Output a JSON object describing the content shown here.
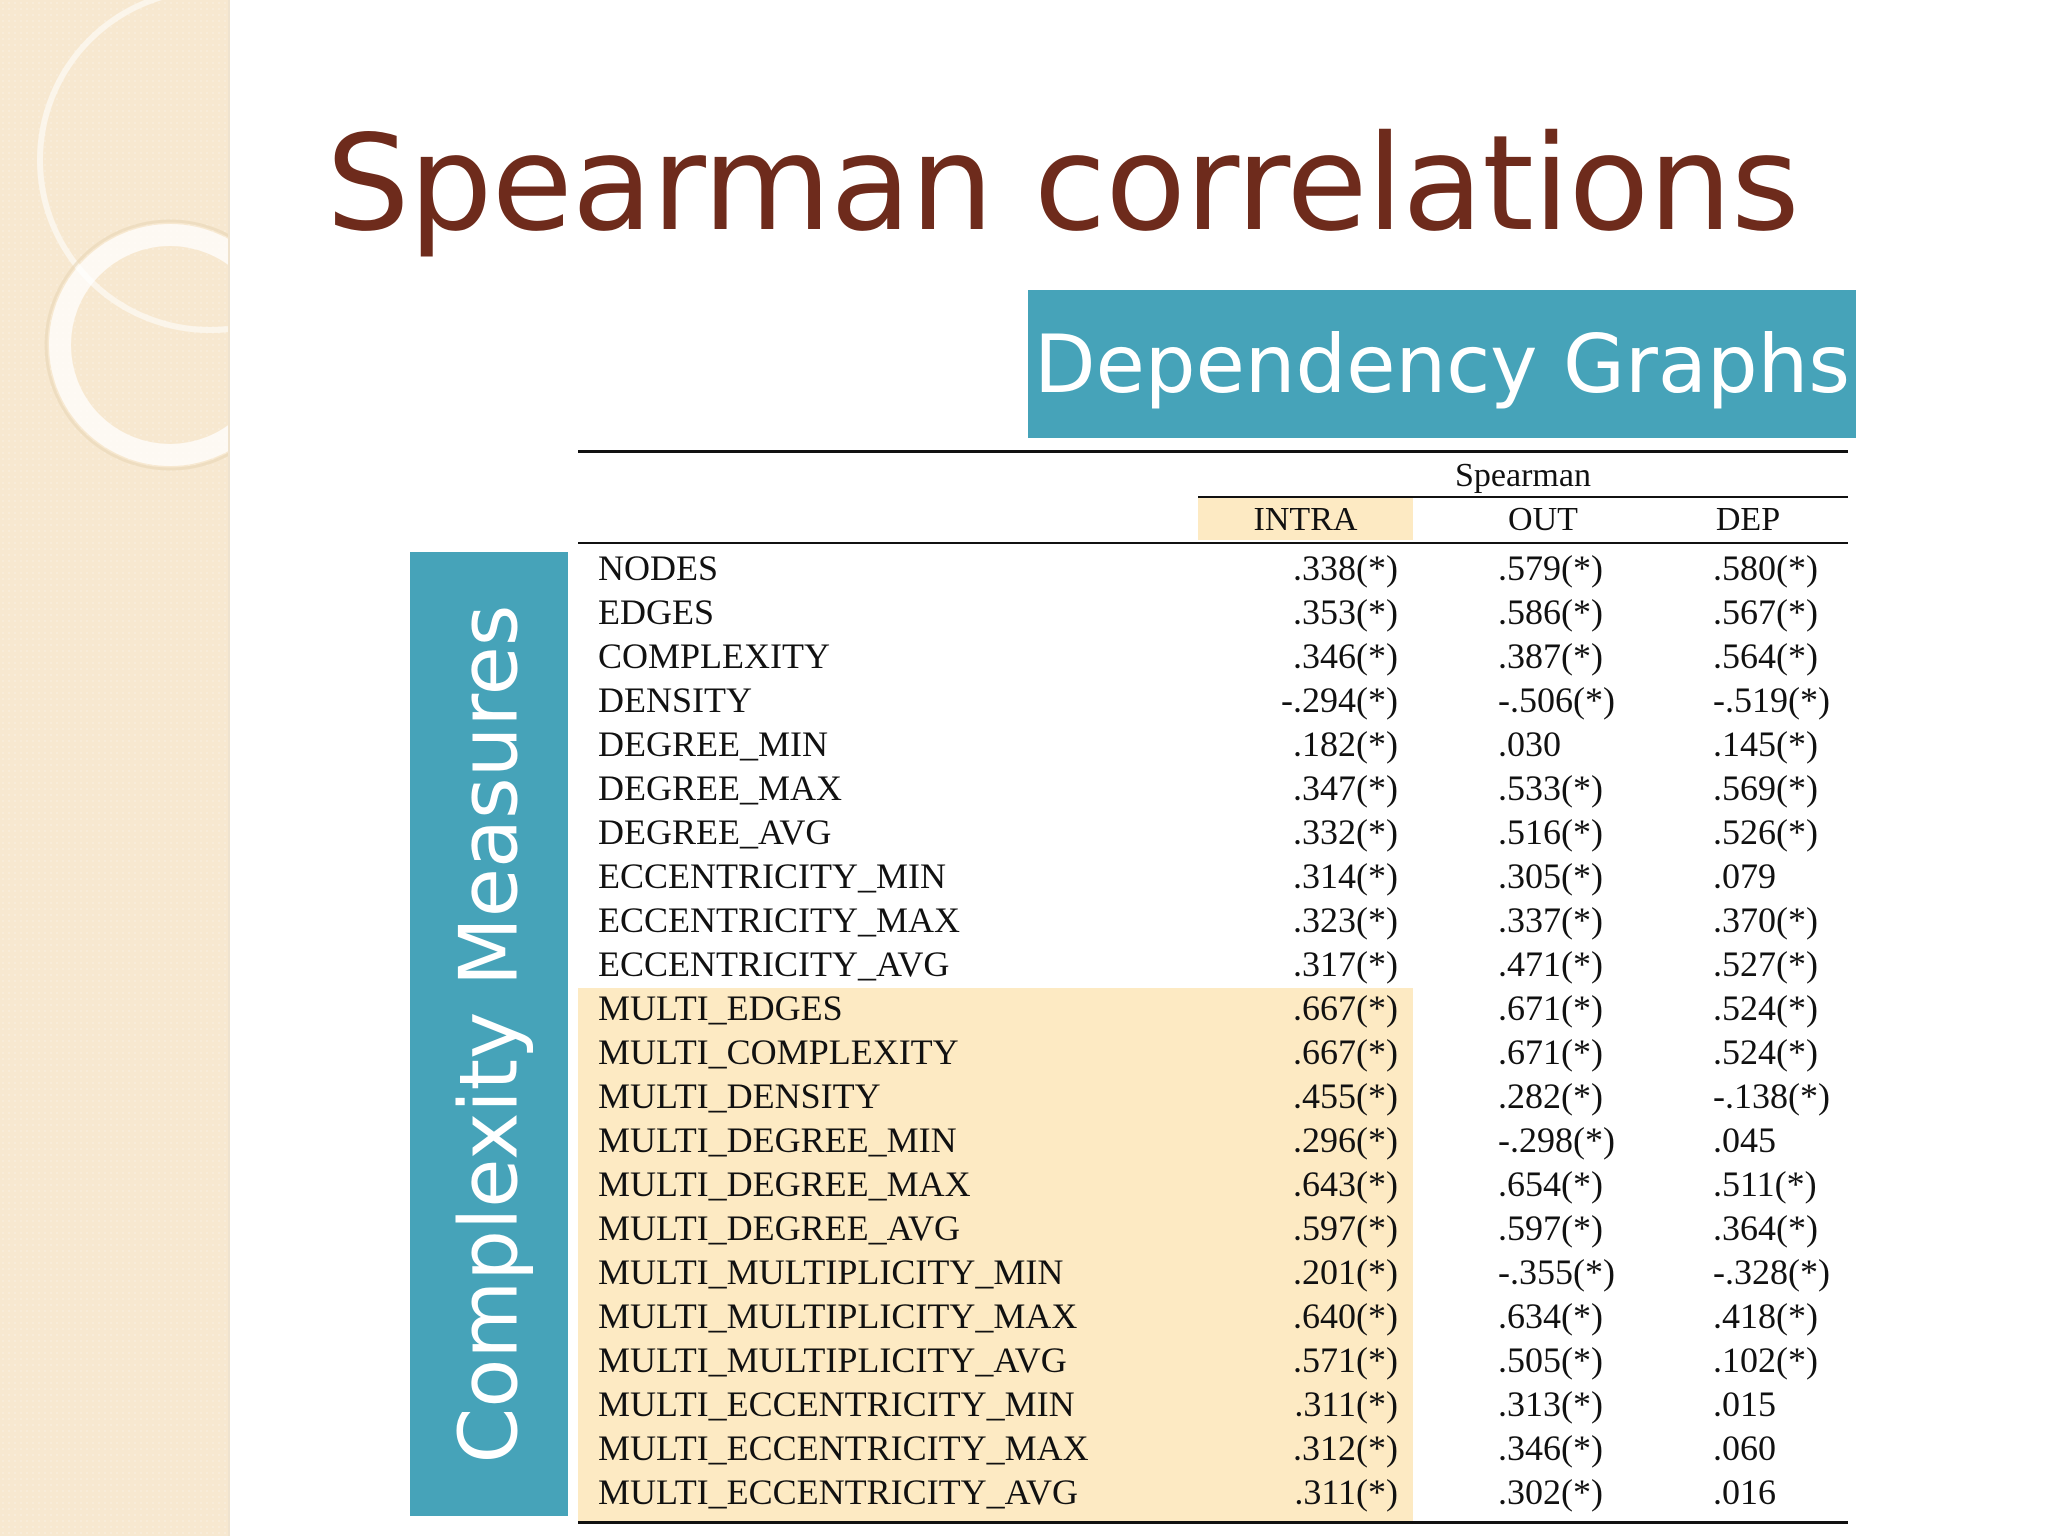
{
  "slide": {
    "title": "Spearman correlations",
    "header_box": "Dependency Graphs",
    "side_box": "Complexity Measures"
  },
  "table": {
    "group_header": "Spearman",
    "columns": [
      "INTRA",
      "OUT",
      "DEP"
    ],
    "rows": [
      {
        "name": "NODES",
        "intra": ".338(*)",
        "out": ".579(*)",
        "dep": ".580(*)"
      },
      {
        "name": "EDGES",
        "intra": ".353(*)",
        "out": ".586(*)",
        "dep": ".567(*)"
      },
      {
        "name": "COMPLEXITY",
        "intra": ".346(*)",
        "out": ".387(*)",
        "dep": ".564(*)"
      },
      {
        "name": "DENSITY",
        "intra": "-.294(*)",
        "out": "-.506(*)",
        "dep": "-.519(*)"
      },
      {
        "name": "DEGREE_MIN",
        "intra": ".182(*)",
        "out": ".030",
        "dep": ".145(*)"
      },
      {
        "name": "DEGREE_MAX",
        "intra": ".347(*)",
        "out": ".533(*)",
        "dep": ".569(*)"
      },
      {
        "name": "DEGREE_AVG",
        "intra": ".332(*)",
        "out": ".516(*)",
        "dep": ".526(*)"
      },
      {
        "name": "ECCENTRICITY_MIN",
        "intra": ".314(*)",
        "out": ".305(*)",
        "dep": ".079"
      },
      {
        "name": "ECCENTRICITY_MAX",
        "intra": ".323(*)",
        "out": ".337(*)",
        "dep": ".370(*)"
      },
      {
        "name": "ECCENTRICITY_AVG",
        "intra": ".317(*)",
        "out": ".471(*)",
        "dep": ".527(*)"
      },
      {
        "name": "MULTI_EDGES",
        "intra": ".667(*)",
        "out": ".671(*)",
        "dep": ".524(*)"
      },
      {
        "name": "MULTI_COMPLEXITY",
        "intra": ".667(*)",
        "out": ".671(*)",
        "dep": ".524(*)"
      },
      {
        "name": "MULTI_DENSITY",
        "intra": ".455(*)",
        "out": ".282(*)",
        "dep": "-.138(*)"
      },
      {
        "name": "MULTI_DEGREE_MIN",
        "intra": ".296(*)",
        "out": "-.298(*)",
        "dep": ".045"
      },
      {
        "name": "MULTI_DEGREE_MAX",
        "intra": ".643(*)",
        "out": ".654(*)",
        "dep": ".511(*)"
      },
      {
        "name": "MULTI_DEGREE_AVG",
        "intra": ".597(*)",
        "out": ".597(*)",
        "dep": ".364(*)"
      },
      {
        "name": "MULTI_MULTIPLICITY_MIN",
        "intra": ".201(*)",
        "out": "-.355(*)",
        "dep": "-.328(*)"
      },
      {
        "name": "MULTI_MULTIPLICITY_MAX",
        "intra": ".640(*)",
        "out": ".634(*)",
        "dep": ".418(*)"
      },
      {
        "name": "MULTI_MULTIPLICITY_AVG",
        "intra": ".571(*)",
        "out": ".505(*)",
        "dep": ".102(*)"
      },
      {
        "name": "MULTI_ECCENTRICITY_MIN",
        "intra": ".311(*)",
        "out": ".313(*)",
        "dep": ".015"
      },
      {
        "name": "MULTI_ECCENTRICITY_MAX",
        "intra": ".312(*)",
        "out": ".346(*)",
        "dep": ".060"
      },
      {
        "name": "MULTI_ECCENTRICITY_AVG",
        "intra": ".311(*)",
        "out": ".302(*)",
        "dep": ".016"
      }
    ]
  },
  "colors": {
    "title": "#6e2b1c",
    "box_fill": "#46a3b9",
    "highlight": "#fdeac3",
    "side_strip": "#f7e8d0"
  }
}
